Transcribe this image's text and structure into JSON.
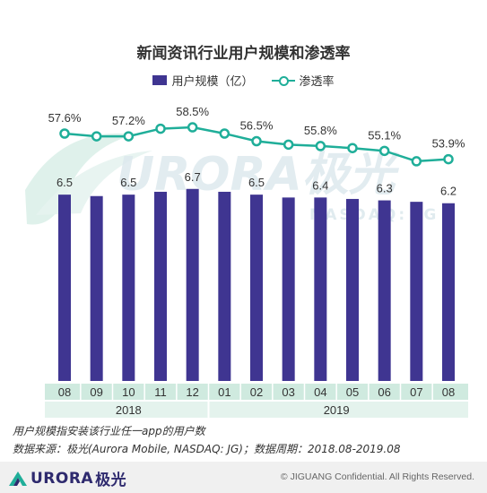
{
  "colors": {
    "bar": "#3f3591",
    "line": "#1fae99",
    "axis_band": "#cfeadf",
    "watermark": "#d9ece8"
  },
  "chart_data": {
    "type": "bar",
    "title": "新闻资讯行业用户规模和渗透率",
    "categories": [
      "08",
      "09",
      "10",
      "11",
      "12",
      "01",
      "02",
      "03",
      "04",
      "05",
      "06",
      "07",
      "08"
    ],
    "groups": [
      {
        "label": "2018"
      },
      {
        "label": "2019"
      }
    ],
    "series": [
      {
        "name": "用户规模（亿）",
        "type": "bar",
        "values": [
          6.5,
          6.45,
          6.5,
          6.6,
          6.7,
          6.6,
          6.5,
          6.4,
          6.4,
          6.35,
          6.3,
          6.25,
          6.2
        ],
        "labels": [
          "6.5",
          "",
          "6.5",
          "",
          "6.7",
          "",
          "6.5",
          "",
          "6.4",
          "",
          "6.3",
          "",
          "6.2"
        ]
      },
      {
        "name": "渗透率",
        "type": "line",
        "values": [
          57.6,
          57.2,
          57.2,
          58.3,
          58.5,
          57.6,
          56.5,
          56.0,
          55.8,
          55.5,
          55.1,
          53.6,
          53.9
        ],
        "labels": [
          "57.6%",
          "",
          "57.2%",
          "",
          "58.5%",
          "",
          "56.5%",
          "",
          "55.8%",
          "",
          "55.1%",
          "",
          "53.9%"
        ]
      }
    ],
    "ylim_bar": [
      0,
      8.6
    ],
    "ylim_line": [
      40,
      62
    ]
  },
  "notes": {
    "line1": "用户规模指安装该行业任一app的用户数",
    "line2": "数据来源：极光(Aurora Mobile, NASDAQ: JG)；数据周期：2018.08-2019.08"
  },
  "footer": {
    "logo_text": "URORA",
    "logo_cn": "极光",
    "copyright": "© JIGUANG Confidential. All Rights Reserved."
  },
  "watermark": {
    "text": "URORA极光",
    "sub": "NASDAQ: JG"
  }
}
